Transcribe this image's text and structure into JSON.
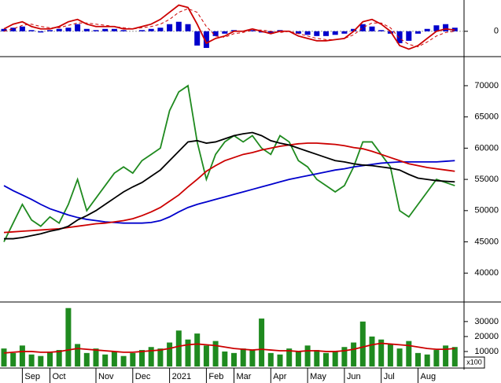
{
  "chart_data": [
    {
      "type": "macd",
      "ylim": [
        -1,
        1.25
      ],
      "yticks": [
        0
      ],
      "series": [
        {
          "style": "bar",
          "color": "#0000cc",
          "values": [
            0.1,
            0.15,
            0.2,
            0.05,
            -0.05,
            0.05,
            0.1,
            0.15,
            0.3,
            0.1,
            0.05,
            0.1,
            0.1,
            0.05,
            0.0,
            0.05,
            0.1,
            0.15,
            0.3,
            0.4,
            0.3,
            -0.6,
            -0.7,
            -0.2,
            -0.1,
            0.05,
            0.0,
            0.05,
            -0.05,
            -0.1,
            0.05,
            0.0,
            -0.1,
            -0.15,
            -0.2,
            -0.2,
            -0.15,
            -0.1,
            0.1,
            0.3,
            0.2,
            0.05,
            -0.1,
            -0.5,
            -0.4,
            -0.1,
            0.1,
            0.25,
            0.3,
            0.15
          ]
        },
        {
          "style": "line",
          "color": "#cc0000",
          "values": [
            0.1,
            0.3,
            0.4,
            0.2,
            0.1,
            0.1,
            0.2,
            0.4,
            0.5,
            0.3,
            0.2,
            0.2,
            0.2,
            0.1,
            0.1,
            0.2,
            0.3,
            0.5,
            0.8,
            1.1,
            1.0,
            0.3,
            -0.5,
            -0.3,
            -0.2,
            0.0,
            0.0,
            0.1,
            0.0,
            -0.1,
            0.0,
            0.0,
            -0.2,
            -0.3,
            -0.4,
            -0.4,
            -0.35,
            -0.3,
            0.0,
            0.4,
            0.5,
            0.3,
            0.0,
            -0.6,
            -0.75,
            -0.6,
            -0.3,
            0.0,
            0.1,
            0.05
          ]
        },
        {
          "style": "dash",
          "color": "#cc0000",
          "values": [
            0.0,
            0.1,
            0.25,
            0.3,
            0.2,
            0.15,
            0.15,
            0.25,
            0.35,
            0.35,
            0.3,
            0.25,
            0.2,
            0.15,
            0.1,
            0.15,
            0.2,
            0.3,
            0.5,
            0.8,
            0.95,
            0.8,
            0.2,
            -0.2,
            -0.25,
            -0.1,
            -0.05,
            0.05,
            0.05,
            0.0,
            -0.05,
            0.0,
            -0.1,
            -0.2,
            -0.3,
            -0.35,
            -0.35,
            -0.3,
            -0.15,
            0.15,
            0.35,
            0.35,
            0.15,
            -0.3,
            -0.55,
            -0.65,
            -0.45,
            -0.2,
            -0.05,
            0.0
          ]
        }
      ]
    },
    {
      "type": "line",
      "ylim": [
        35500,
        74400
      ],
      "yticks": [
        40000,
        45000,
        50000,
        55000,
        60000,
        65000,
        70000
      ],
      "series": [
        {
          "style": "line",
          "color": "#1f8a1f",
          "values": [
            45000,
            48000,
            51000,
            48500,
            47500,
            49000,
            48000,
            51000,
            55000,
            50000,
            52000,
            54000,
            56000,
            57000,
            56000,
            58000,
            59000,
            60000,
            66000,
            69000,
            70000,
            61000,
            55000,
            59000,
            61000,
            62000,
            61000,
            62000,
            60000,
            59000,
            62000,
            61000,
            58000,
            57000,
            55000,
            54000,
            53000,
            54000,
            57000,
            61000,
            61000,
            59000,
            57000,
            50000,
            49000,
            51000,
            53000,
            55000,
            54500,
            54000
          ]
        },
        {
          "style": "line",
          "color": "#0000cc",
          "values": [
            54000,
            53200,
            52500,
            51800,
            51000,
            50300,
            49800,
            49300,
            48900,
            48600,
            48400,
            48200,
            48100,
            48000,
            48000,
            48000,
            48100,
            48400,
            49000,
            49800,
            50500,
            51000,
            51400,
            51800,
            52200,
            52600,
            53000,
            53400,
            53800,
            54200,
            54600,
            55000,
            55300,
            55600,
            55900,
            56200,
            56500,
            56700,
            57000,
            57200,
            57400,
            57600,
            57700,
            57800,
            57800,
            57800,
            57800,
            57800,
            57900,
            58000
          ]
        },
        {
          "style": "line",
          "color": "#cc0000",
          "values": [
            46500,
            46600,
            46700,
            46800,
            46900,
            47000,
            47100,
            47300,
            47500,
            47700,
            47900,
            48000,
            48200,
            48400,
            48700,
            49200,
            49800,
            50500,
            51500,
            52500,
            53800,
            55000,
            56300,
            57200,
            58000,
            58500,
            59000,
            59300,
            59700,
            60000,
            60300,
            60500,
            60700,
            60800,
            60800,
            60700,
            60600,
            60400,
            60100,
            59900,
            59500,
            59000,
            58500,
            58000,
            57500,
            57200,
            56900,
            56700,
            56500,
            56300
          ]
        },
        {
          "style": "line",
          "color": "#000000",
          "values": [
            45500,
            45500,
            45700,
            46000,
            46300,
            46700,
            47000,
            47500,
            48500,
            49200,
            50000,
            51000,
            52000,
            53000,
            53800,
            54500,
            55500,
            56500,
            58000,
            59500,
            61000,
            61200,
            60800,
            61000,
            61500,
            62000,
            62300,
            62500,
            62000,
            61200,
            60800,
            60500,
            60000,
            59500,
            59000,
            58500,
            58000,
            57800,
            57500,
            57300,
            57200,
            57000,
            56800,
            56500,
            55800,
            55200,
            55000,
            54800,
            54700,
            54600
          ]
        }
      ]
    },
    {
      "type": "bar",
      "ylim": [
        0,
        42000
      ],
      "yticks": [
        10000,
        20000,
        30000
      ],
      "unit_label": "x100",
      "categories": [
        null,
        null,
        "Sep",
        null,
        null,
        "Oct",
        null,
        null,
        null,
        null,
        "Nov",
        null,
        null,
        null,
        "Dec",
        null,
        null,
        null,
        "2021",
        null,
        null,
        null,
        "Feb",
        null,
        null,
        "Mar",
        null,
        null,
        null,
        "Apr",
        null,
        null,
        null,
        "May",
        null,
        null,
        null,
        "Jun",
        null,
        null,
        null,
        "Jul",
        null,
        null,
        null,
        "Aug",
        null,
        null,
        null,
        null
      ],
      "series": [
        {
          "style": "bar",
          "color": "#1f8a1f",
          "values": [
            12000,
            9000,
            14000,
            8000,
            7000,
            10000,
            11000,
            39000,
            15000,
            9000,
            12000,
            8000,
            10000,
            7000,
            9000,
            11000,
            13000,
            12000,
            16000,
            24000,
            18000,
            22000,
            14000,
            17000,
            10000,
            9000,
            12000,
            11000,
            32000,
            9000,
            8000,
            12000,
            10000,
            14000,
            11000,
            9000,
            10000,
            13000,
            16000,
            30000,
            20000,
            18000,
            15000,
            12000,
            17000,
            9000,
            8000,
            11000,
            14000,
            13000
          ]
        },
        {
          "style": "line",
          "color": "#cc0000",
          "values": [
            9000,
            9500,
            10000,
            10000,
            9500,
            9500,
            10000,
            11000,
            12000,
            11500,
            11000,
            10500,
            10000,
            9500,
            9500,
            10000,
            10500,
            11000,
            12000,
            13500,
            14500,
            15000,
            14500,
            14000,
            13000,
            12000,
            11500,
            11000,
            11500,
            11000,
            10500,
            10500,
            10000,
            10500,
            10500,
            10000,
            10000,
            10500,
            11500,
            13000,
            14500,
            15500,
            15000,
            14500,
            14000,
            13000,
            12000,
            11500,
            11500,
            12000
          ]
        }
      ]
    }
  ]
}
